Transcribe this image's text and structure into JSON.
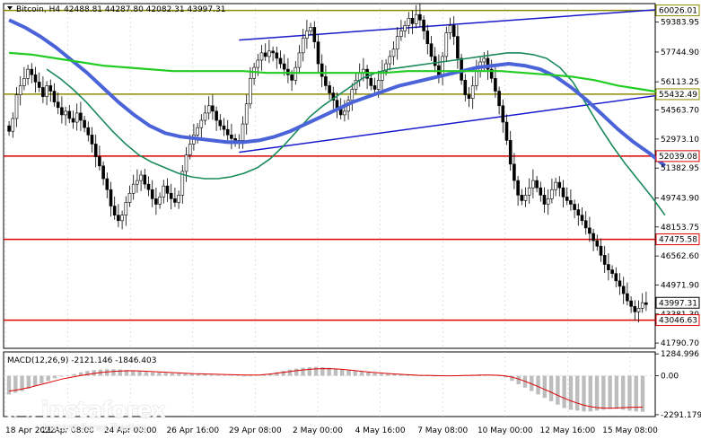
{
  "header": {
    "symbol_label": "Bitcoin, H4",
    "ohlc": "42488.81 44287.80 42082.31 43997.31",
    "macd_label": "MACD(12,26,9) -2121.146 -1846.403"
  },
  "logo": {
    "brand": "instaforex",
    "tagline": "Instant Forex Trading"
  },
  "colors": {
    "ma_fast": "#1a8a5a",
    "ma_mid": "#4a63d9",
    "ma_slow": "#22cc22",
    "channel": "#1a1acc",
    "level_red": "#dd0000",
    "level_olive": "#8c8c00",
    "candle": "#000000",
    "macd_hist": "#bdbdbd",
    "macd_signal": "#dd0000"
  },
  "chart_data": {
    "type": "candlestick",
    "price_axis_ticks": [
      "59383.95",
      "57744.90",
      "56113.25",
      "54563.70",
      "52973.10",
      "51382.95",
      "49743.90",
      "48153.75",
      "46562.60",
      "44971.90",
      "43381.30",
      "41790.70"
    ],
    "price_range": [
      41500,
      60400
    ],
    "x_tick_labels": [
      "18 Apr 2022",
      "21 Apr 08:00",
      "24 Apr 00:00",
      "26 Apr 16:00",
      "29 Apr 08:00",
      "2 May 00:00",
      "4 May 16:00",
      "7 May 08:00",
      "10 May 00:00",
      "12 May 16:00",
      "15 May 08:00"
    ],
    "current_price": {
      "label": "43997.31",
      "value": 43997.31
    },
    "levels": [
      {
        "label": "60026.01",
        "value": 60026.01,
        "color": "olive"
      },
      {
        "label": "55432.49",
        "value": 55432.49,
        "color": "olive"
      },
      {
        "label": "52039.08",
        "value": 52039.08,
        "color": "red"
      },
      {
        "label": "47475.58",
        "value": 47475.58,
        "color": "red"
      },
      {
        "label": "43046.63",
        "value": 43046.63,
        "color": "red"
      }
    ],
    "channel_lines": [
      {
        "from": {
          "bar": 61,
          "price": 58400
        },
        "to": {
          "bar": 174,
          "price": 60100
        }
      },
      {
        "from": {
          "bar": 61,
          "price": 52250
        },
        "to": {
          "bar": 174,
          "price": 55420
        }
      }
    ],
    "closes": [
      53400,
      54100,
      55400,
      55900,
      56300,
      56800,
      56500,
      56100,
      55800,
      55300,
      55900,
      55600,
      55000,
      54700,
      54300,
      54500,
      54100,
      53900,
      54400,
      54000,
      53600,
      53200,
      52700,
      52000,
      51500,
      50800,
      50200,
      49300,
      48800,
      48500,
      48800,
      49500,
      50000,
      50500,
      50700,
      51000,
      50500,
      50200,
      49700,
      49400,
      49800,
      50400,
      50000,
      49700,
      49500,
      49900,
      51200,
      52100,
      52700,
      53200,
      53600,
      54000,
      54400,
      54800,
      54500,
      54000,
      53700,
      53500,
      53200,
      53000,
      52800,
      52900,
      53800,
      54900,
      56300,
      56900,
      57300,
      57700,
      57500,
      57800,
      57700,
      57400,
      57100,
      56800,
      56500,
      56200,
      56900,
      57700,
      58500,
      58900,
      59100,
      58300,
      57100,
      56400,
      55900,
      55500,
      55100,
      54700,
      54300,
      54500,
      55100,
      55700,
      56200,
      56600,
      56800,
      56300,
      55900,
      55700,
      56200,
      56700,
      57100,
      57500,
      57900,
      58600,
      58900,
      59200,
      59600,
      59300,
      59800,
      59500,
      58900,
      58200,
      57500,
      57000,
      56500,
      57500,
      58800,
      59200,
      58600,
      57400,
      56200,
      55400,
      55200,
      55900,
      56700,
      57200,
      57400,
      56800,
      56300,
      55600,
      54800,
      53900,
      52900,
      51600,
      50700,
      49900,
      49600,
      49900,
      50300,
      50700,
      50300,
      49900,
      49400,
      49700,
      50200,
      50600,
      50300,
      49800,
      49600,
      49400,
      49100,
      48800,
      48500,
      48100,
      47800,
      47400,
      47100,
      46600,
      46100,
      45800,
      45600,
      45200,
      44900,
      44500,
      44100,
      43800,
      43500,
      43700,
      44000,
      43900
    ],
    "series": [
      {
        "name": "",
        "type": "ma",
        "color": "ma_fast",
        "from_bar": 10,
        "to_bar": 174,
        "values": [
          56800,
          56300,
          55700,
          55000,
          54200,
          53400,
          52700,
          52100,
          51700,
          51400,
          51100,
          50900,
          50800,
          50800,
          50900,
          51100,
          51400,
          51900,
          52600,
          53400,
          54200,
          54800,
          55300,
          55800,
          56300,
          56600,
          56800,
          56900,
          57000,
          57100,
          57200,
          57300,
          57400,
          57500,
          57600,
          57700,
          57700,
          57600,
          57400,
          56900,
          56100,
          54900,
          53700,
          52600,
          51600,
          50700,
          49800,
          48800
        ]
      },
      {
        "name": "",
        "type": "ma",
        "color": "ma_mid",
        "from_bar": 0,
        "to_bar": 174,
        "values": [
          59500,
          59100,
          58600,
          58000,
          57300,
          56600,
          55800,
          55000,
          54300,
          53700,
          53300,
          53100,
          53000,
          52900,
          52800,
          52800,
          52900,
          53100,
          53400,
          53800,
          54200,
          54600,
          55000,
          55300,
          55600,
          55900,
          56100,
          56300,
          56500,
          56700,
          56900,
          57000,
          57100,
          57000,
          56800,
          56400,
          55800,
          55100,
          54300,
          53500,
          52800,
          52200,
          51500
        ]
      },
      {
        "name": "",
        "type": "ma",
        "color": "ma_slow",
        "from_bar": 0,
        "to_bar": 174,
        "values": [
          57700,
          57600,
          57400,
          57200,
          57000,
          56900,
          56800,
          56700,
          56700,
          56700,
          56700,
          56600,
          56600,
          56600,
          56600,
          56600,
          56600,
          56700,
          56700,
          56700,
          56700,
          56700,
          56600,
          56500,
          56400,
          56200,
          55900,
          55700,
          55500
        ]
      }
    ],
    "macd": {
      "axis_ticks": [
        "1284.996",
        "0.00",
        "-2291.179"
      ],
      "range": [
        -2400,
        1400
      ],
      "histogram": [
        -1100,
        -1000,
        -900,
        -750,
        -600,
        -450,
        -300,
        -150,
        -50,
        0,
        100,
        200,
        280,
        330,
        360,
        380,
        380,
        370,
        340,
        300,
        260,
        220,
        200,
        180,
        160,
        140,
        120,
        110,
        100,
        90,
        80,
        60,
        40,
        20,
        0,
        -20,
        -40,
        -30,
        0,
        60,
        120,
        200,
        280,
        360,
        420,
        470,
        500,
        520,
        500,
        470,
        430,
        380,
        330,
        280,
        230,
        190,
        150,
        120,
        100,
        80,
        60,
        40,
        20,
        0,
        -20,
        -40,
        -30,
        -20,
        0,
        20,
        40,
        60,
        80,
        60,
        40,
        0,
        -100,
        -300,
        -500,
        -700,
        -900,
        -1100,
        -1300,
        -1500,
        -1700,
        -1900,
        -2000,
        -2050,
        -2100,
        -2100,
        -2050,
        -2000,
        -1950,
        -1950,
        -2000,
        -2050,
        -2100,
        -2120
      ],
      "signal": [
        -900,
        -850,
        -780,
        -700,
        -600,
        -500,
        -400,
        -300,
        -200,
        -120,
        -50,
        20,
        80,
        140,
        190,
        230,
        260,
        280,
        290,
        290,
        280,
        260,
        240,
        220,
        200,
        180,
        160,
        140,
        120,
        110,
        100,
        90,
        80,
        70,
        60,
        50,
        40,
        40,
        50,
        80,
        120,
        170,
        220,
        270,
        320,
        360,
        390,
        410,
        420,
        410,
        390,
        360,
        320,
        280,
        240,
        200,
        170,
        140,
        110,
        90,
        70,
        50,
        30,
        20,
        10,
        0,
        -5,
        -5,
        0,
        10,
        20,
        30,
        40,
        40,
        30,
        0,
        -60,
        -170,
        -300,
        -450,
        -610,
        -780,
        -950,
        -1130,
        -1300,
        -1460,
        -1600,
        -1720,
        -1810,
        -1870,
        -1900,
        -1910,
        -1900,
        -1880,
        -1860,
        -1850,
        -1846
      ]
    }
  }
}
